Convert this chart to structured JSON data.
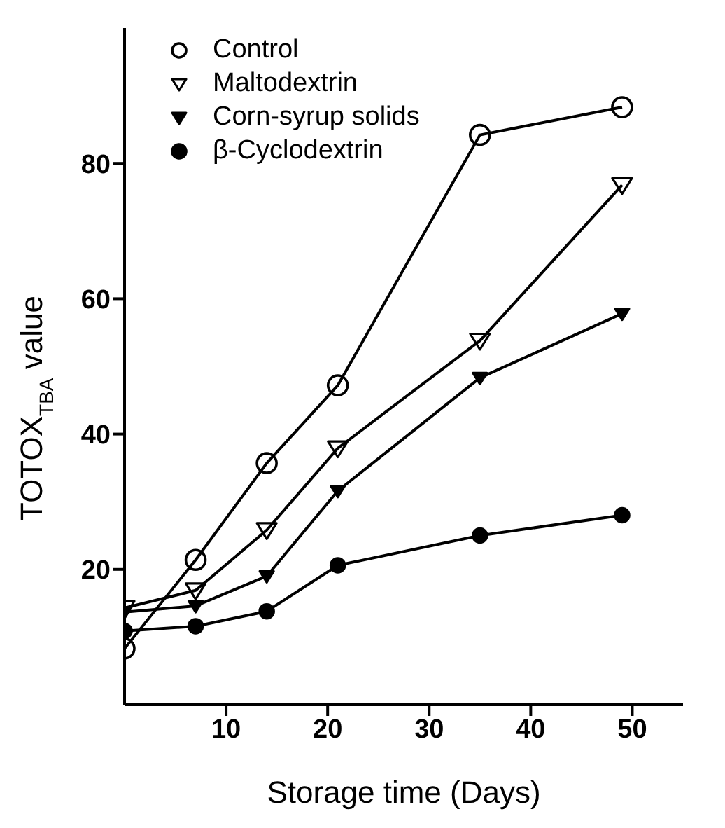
{
  "chart_data": {
    "type": "line",
    "xlabel": "Storage time (Days)",
    "ylabel": "TOTOX$_{TBA}$ value",
    "x": [
      0,
      7,
      14,
      21,
      35,
      49
    ],
    "series": [
      {
        "name": "Control",
        "color": "#000000",
        "marker": "circle",
        "values": [
          8.3,
          21.4,
          35.7,
          47.2,
          84.2,
          88.3
        ]
      },
      {
        "name": "Maltodextrin",
        "color": "#000000",
        "marker": "triangle",
        "values": [
          14.3,
          16.9,
          25.8,
          37.9,
          53.8,
          76.8
        ]
      },
      {
        "name": "Corn-syrup solids",
        "color": "#000000",
        "marker": "triangle",
        "values": [
          13.7,
          14.6,
          19.0,
          31.6,
          48.3,
          57.8
        ]
      },
      {
        "name": "β-Cyclodextrin",
        "color": "#000000",
        "marker": "circle",
        "values": [
          10.9,
          11.6,
          13.8,
          20.6,
          25.0,
          28.0
        ]
      }
    ],
    "xlim": [
      0,
      55
    ],
    "xticks": [
      10,
      20,
      30,
      40,
      50
    ],
    "ylim": [
      0,
      100
    ],
    "yticks": [
      20,
      40,
      60,
      80
    ],
    "grid": false,
    "legend": "top left",
    "line_style": "solid"
  }
}
